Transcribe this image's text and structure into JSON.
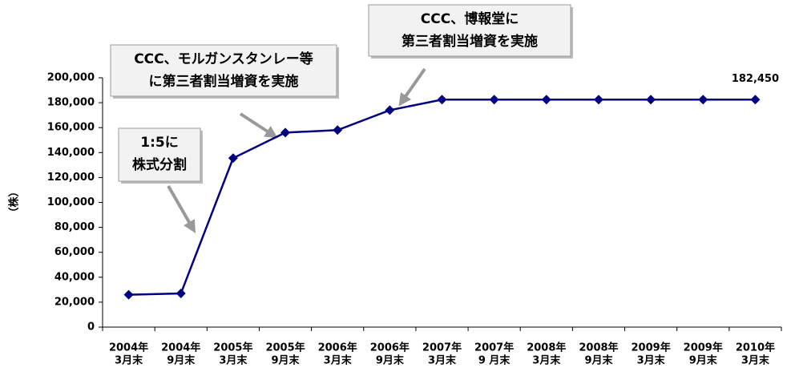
{
  "chart_data": {
    "type": "line",
    "y_label": "（株）",
    "categories": [
      [
        "2004年",
        "3月末"
      ],
      [
        "2004年",
        "9月末"
      ],
      [
        "2005年",
        "3月末"
      ],
      [
        "2005年",
        "9月末"
      ],
      [
        "2006年",
        "3月末"
      ],
      [
        "2006年",
        "9月末"
      ],
      [
        "2007年",
        "3月末"
      ],
      [
        "2007年",
        "9 月末"
      ],
      [
        "2008年",
        "3月末"
      ],
      [
        "2008年",
        "9月末"
      ],
      [
        "2009年",
        "3月末"
      ],
      [
        "2009年",
        "9月末"
      ],
      [
        "2010年",
        "3月末"
      ]
    ],
    "series": [
      {
        "color": "#000080",
        "values": [
          26000,
          27000,
          135500,
          156000,
          158000,
          174000,
          182450,
          182450,
          182450,
          182450,
          182450,
          182450,
          182450
        ],
        "value_labels": [
          null,
          null,
          null,
          null,
          null,
          null,
          null,
          null,
          null,
          null,
          null,
          null,
          "182,450"
        ]
      }
    ],
    "ylim": [
      0,
      200000
    ],
    "yticks": [
      0,
      {
        "value": 20000,
        "label": "20,000"
      },
      {
        "value": 40000,
        "label": "40,000"
      },
      {
        "value": 60000,
        "label": "60,000"
      },
      {
        "value": 80000,
        "label": "80,000"
      },
      {
        "value": 100000,
        "label": "100,000"
      },
      {
        "value": 120000,
        "label": "120,000"
      },
      {
        "value": 140000,
        "label": "140,000"
      },
      {
        "value": 160000,
        "label": "160,000"
      },
      {
        "value": 180000,
        "label": "180,000"
      },
      {
        "value": 200000,
        "label": "200,000"
      }
    ],
    "annotations": [
      {
        "lines": [
          "1:5に",
          "株式分割"
        ]
      },
      {
        "lines": [
          "CCC、モルガンスタンレー等",
          "に第三者割当増資を実施"
        ]
      },
      {
        "lines": [
          "CCC、博報堂に",
          "第三者割当増資を実施"
        ]
      }
    ]
  }
}
